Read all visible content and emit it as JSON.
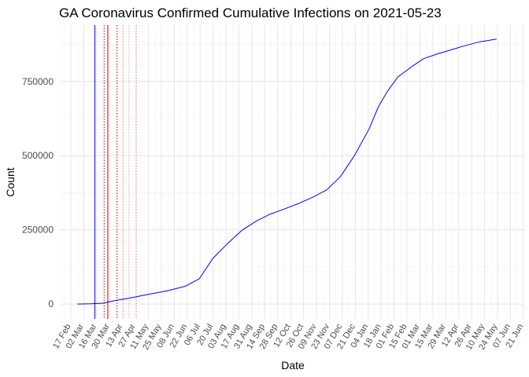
{
  "chart_data": {
    "type": "line",
    "title": "GA Coronavirus Confirmed Cumulative Infections on 2021-05-23",
    "xlabel": "Date",
    "ylabel": "Count",
    "ylim": [
      -50000,
      940000
    ],
    "xlim": [
      "2020-02-05",
      "2021-06-22"
    ],
    "grid": true,
    "legend": "none",
    "y_ticks": [
      0,
      250000,
      500000,
      750000
    ],
    "y_tick_labels": [
      "0",
      "250000",
      "500000",
      "750000"
    ],
    "x_ticks": [
      "2020-02-17",
      "2020-03-02",
      "2020-03-16",
      "2020-03-30",
      "2020-04-13",
      "2020-04-27",
      "2020-05-11",
      "2020-05-25",
      "2020-06-08",
      "2020-06-22",
      "2020-07-06",
      "2020-07-20",
      "2020-08-03",
      "2020-08-17",
      "2020-08-31",
      "2020-09-14",
      "2020-09-28",
      "2020-10-12",
      "2020-10-26",
      "2020-11-09",
      "2020-11-23",
      "2020-12-07",
      "2020-12-21",
      "2021-01-04",
      "2021-01-18",
      "2021-02-01",
      "2021-02-15",
      "2021-03-01",
      "2021-03-15",
      "2021-03-29",
      "2021-04-12",
      "2021-04-26",
      "2021-05-10",
      "2021-05-24",
      "2021-06-07",
      "2021-06-21"
    ],
    "x_tick_labels": [
      "17 Feb",
      "02 Mar",
      "16 Mar",
      "30 Mar",
      "13 Apr",
      "27 Apr",
      "11 May",
      "25 May",
      "08 Jun",
      "22 Jun",
      "06 Jul",
      "20 Jul",
      "03 Aug",
      "17 Aug",
      "31 Aug",
      "14 Sep",
      "28 Sep",
      "12 Oct",
      "26 Oct",
      "09 Nov",
      "23 Nov",
      "07 Dec",
      "21 Dec",
      "04 Jan",
      "18 Jan",
      "01 Feb",
      "15 Feb",
      "01 Mar",
      "15 Mar",
      "29 Mar",
      "12 Apr",
      "26 Apr",
      "10 May",
      "24 May",
      "07 Jun",
      "21 Jun"
    ],
    "series": [
      {
        "color": "#0000ff",
        "x": [
          "2020-02-24",
          "2020-03-10",
          "2020-03-23",
          "2020-04-05",
          "2020-04-20",
          "2020-05-10",
          "2020-06-01",
          "2020-06-20",
          "2020-07-05",
          "2020-07-20",
          "2020-08-05",
          "2020-08-20",
          "2020-09-05",
          "2020-09-20",
          "2020-10-05",
          "2020-10-20",
          "2020-11-05",
          "2020-11-20",
          "2020-12-05",
          "2020-12-20",
          "2021-01-05",
          "2021-01-15",
          "2021-01-25",
          "2021-02-05",
          "2021-02-20",
          "2021-03-05",
          "2021-03-20",
          "2021-04-05",
          "2021-04-20",
          "2021-05-05",
          "2021-05-23"
        ],
        "y": [
          0,
          1000,
          3000,
          12000,
          20000,
          32000,
          45000,
          60000,
          85000,
          155000,
          205000,
          248000,
          280000,
          303000,
          320000,
          338000,
          360000,
          385000,
          430000,
          500000,
          590000,
          665000,
          718000,
          765000,
          800000,
          827000,
          843000,
          858000,
          872000,
          884000,
          893000
        ]
      }
    ],
    "reference_lines": [
      {
        "x": "2020-03-14",
        "color": "#0000ff",
        "style": "solid"
      },
      {
        "x": "2020-03-28",
        "color": "#cc0000",
        "style": "solid"
      },
      {
        "x": "2020-03-24",
        "color": "#cc0000",
        "style": "dotted"
      },
      {
        "x": "2020-04-07",
        "color": "#cc0000",
        "style": "dotted"
      },
      {
        "x": "2020-04-14",
        "color": "#ff9999",
        "style": "dotted"
      },
      {
        "x": "2020-04-20",
        "color": "#ff9999",
        "style": "dotted"
      },
      {
        "x": "2020-04-28",
        "color": "#ff9999",
        "style": "dotted"
      }
    ]
  }
}
